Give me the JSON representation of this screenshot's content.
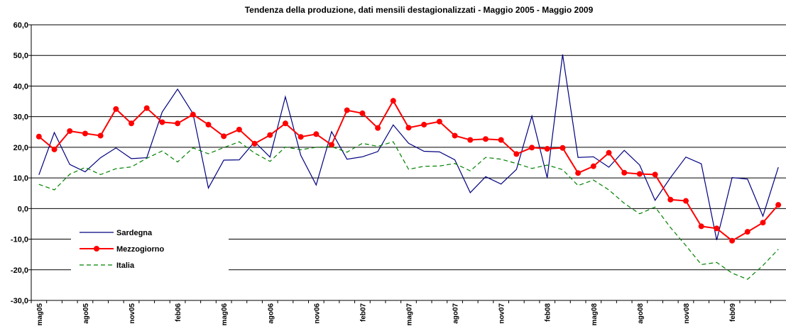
{
  "chart_data": {
    "type": "line",
    "title": "Tendenza della produzione, dati mensili destagionalizzati - Maggio 2005 - Maggio 2009",
    "categories": [
      "mag05",
      null,
      null,
      "ago05",
      null,
      null,
      "nov05",
      null,
      null,
      "feb06",
      null,
      null,
      "mag06",
      null,
      null,
      "ago06",
      null,
      null,
      "nov06",
      null,
      null,
      "feb07",
      null,
      null,
      "mag07",
      null,
      null,
      "ago07",
      null,
      null,
      "nov07",
      null,
      null,
      "feb08",
      null,
      null,
      "mag08",
      null,
      null,
      "ago08",
      null,
      null,
      "nov08",
      null,
      null,
      "feb09",
      null,
      null,
      null
    ],
    "series": [
      {
        "name": "Sardegna",
        "color": "#000080",
        "dash": "solid",
        "marker": "none",
        "values": [
          11,
          24.8,
          14.4,
          12.0,
          16.6,
          19.8,
          16.3,
          16.6,
          31.5,
          39.0,
          31.0,
          6.7,
          15.8,
          15.9,
          21.8,
          16.8,
          36.5,
          17.4,
          7.7,
          25.1,
          16.1,
          16.9,
          18.6,
          27.3,
          21.3,
          18.7,
          18.5,
          15.9,
          5.2,
          10.4,
          8.0,
          12.8,
          30.2,
          10.0,
          50.3,
          16.7,
          16.9,
          13.5,
          19.0,
          14.2,
          2.7,
          10.1,
          16.8,
          14.6,
          -10.3,
          10.1,
          9.6,
          -2.5,
          13.5
        ]
      },
      {
        "name": "Mezzogiorno",
        "color": "#ff0000",
        "dash": "solid",
        "marker": "circle",
        "values": [
          23.5,
          19.3,
          25.3,
          24.5,
          23.8,
          32.5,
          27.8,
          32.8,
          28.2,
          27.8,
          30.7,
          27.4,
          23.6,
          25.8,
          21.2,
          24.0,
          27.8,
          23.4,
          24.3,
          20.8,
          32.1,
          31.1,
          26.3,
          35.2,
          26.4,
          27.4,
          28.4,
          23.8,
          22.4,
          22.7,
          22.4,
          17.8,
          19.9,
          19.5,
          19.8,
          11.6,
          13.8,
          18.2,
          11.7,
          11.3,
          11.1,
          2.9,
          2.5,
          -5.8,
          -6.5,
          -10.5,
          -7.6,
          -4.6,
          1.2
        ]
      },
      {
        "name": "Italia",
        "color": "#008000",
        "dash": "dashed",
        "marker": "none",
        "values": [
          7.9,
          6.1,
          11.2,
          13.4,
          11.1,
          13.0,
          13.6,
          16.4,
          18.8,
          15.2,
          19.8,
          17.9,
          19.9,
          21.8,
          18.1,
          15.4,
          20.1,
          19.2,
          20.0,
          20.2,
          18.4,
          21.3,
          20.3,
          21.8,
          12.8,
          13.8,
          13.9,
          14.7,
          12.3,
          16.7,
          16.1,
          14.7,
          13.1,
          14.2,
          12.7,
          7.5,
          9.3,
          6.1,
          1.7,
          -1.7,
          0.5,
          -6.2,
          -12.1,
          -18.3,
          -17.6,
          -21.1,
          -23.1,
          -18.6,
          -13.3
        ]
      }
    ],
    "ylim": [
      -30,
      60
    ],
    "yticks": [
      {
        "value": -30,
        "label": "-30,0"
      },
      {
        "value": -20,
        "label": "-20,0"
      },
      {
        "value": -10,
        "label": "-10,0"
      },
      {
        "value": 0,
        "label": "0,0"
      },
      {
        "value": 10,
        "label": "10,0"
      },
      {
        "value": 20,
        "label": "20,0"
      },
      {
        "value": 30,
        "label": "30,0"
      },
      {
        "value": 40,
        "label": "40,0"
      },
      {
        "value": 50,
        "label": "50,0"
      },
      {
        "value": 60,
        "label": "60,0"
      }
    ],
    "grid": true,
    "legend": "lower left"
  }
}
